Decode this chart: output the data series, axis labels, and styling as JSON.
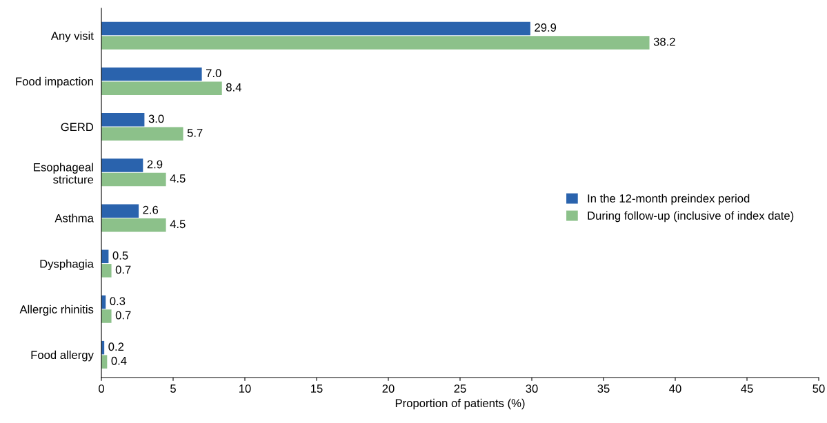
{
  "chart_data": {
    "type": "bar",
    "orientation": "horizontal",
    "xlabel": "Proportion of patients (%)",
    "categories": [
      "Any visit",
      "Food impaction",
      "GERD",
      "Esophageal\nstricture",
      "Asthma",
      "Dysphagia",
      "Allergic rhinitis",
      "Food allergy"
    ],
    "series": [
      {
        "name": "In the 12-month preindex period",
        "color": "#2a63ad",
        "values": [
          29.9,
          7.0,
          3.0,
          2.9,
          2.6,
          0.5,
          0.3,
          0.2
        ],
        "value_labels": [
          "29.9",
          "7.0",
          "3.0",
          "2.9",
          "2.6",
          "0.5",
          "0.3",
          "0.2"
        ]
      },
      {
        "name": "During follow-up (inclusive of index date)",
        "color": "#8cc18a",
        "values": [
          38.2,
          8.4,
          5.7,
          4.5,
          4.5,
          0.7,
          0.7,
          0.4
        ],
        "value_labels": [
          "38.2",
          "8.4",
          "5.7",
          "4.5",
          "4.5",
          "0.7",
          "0.7",
          "0.4"
        ]
      }
    ],
    "xlim": [
      0,
      50
    ],
    "xticks": [
      0,
      5,
      10,
      15,
      20,
      25,
      30,
      35,
      40,
      45,
      50
    ],
    "grid": false,
    "legend": "right"
  }
}
